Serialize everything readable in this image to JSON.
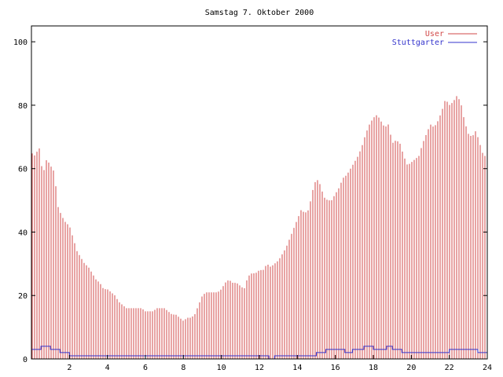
{
  "chart_data": {
    "type": "bar",
    "title": "Samstag 7. Oktober 2000",
    "xlabel": "",
    "ylabel": "",
    "xlim": [
      0,
      24
    ],
    "ylim": [
      0,
      105
    ],
    "x_ticks": [
      2,
      4,
      6,
      8,
      10,
      12,
      14,
      16,
      18,
      20,
      22,
      24
    ],
    "y_ticks": [
      0,
      20,
      40,
      60,
      80,
      100
    ],
    "grid": false,
    "legend_position": "top-right",
    "series": [
      {
        "name": "User",
        "style": "impulses",
        "color": "#d24a4a",
        "x": [
          0.0,
          0.2,
          0.4,
          0.6,
          0.8,
          1.0,
          1.2,
          1.4,
          1.6,
          1.8,
          2.0,
          2.2,
          2.4,
          2.6,
          2.8,
          3.0,
          3.2,
          3.4,
          3.6,
          3.8,
          4.0,
          4.2,
          4.4,
          4.6,
          4.8,
          5.0,
          5.2,
          5.4,
          5.6,
          5.8,
          6.0,
          6.2,
          6.4,
          6.6,
          6.8,
          7.0,
          7.2,
          7.4,
          7.6,
          7.8,
          8.0,
          8.2,
          8.4,
          8.6,
          8.8,
          9.0,
          9.2,
          9.4,
          9.6,
          9.8,
          10.0,
          10.2,
          10.4,
          10.6,
          10.8,
          11.0,
          11.2,
          11.4,
          11.6,
          11.8,
          12.0,
          12.2,
          12.4,
          12.6,
          12.8,
          13.0,
          13.2,
          13.4,
          13.6,
          13.8,
          14.0,
          14.2,
          14.4,
          14.6,
          14.8,
          15.0,
          15.2,
          15.4,
          15.6,
          15.8,
          16.0,
          16.2,
          16.4,
          16.6,
          16.8,
          17.0,
          17.2,
          17.4,
          17.6,
          17.8,
          18.0,
          18.2,
          18.4,
          18.6,
          18.8,
          19.0,
          19.2,
          19.4,
          19.6,
          19.8,
          20.0,
          20.2,
          20.4,
          20.6,
          20.8,
          21.0,
          21.2,
          21.4,
          21.6,
          21.8,
          22.0,
          22.2,
          22.4,
          22.6,
          22.8,
          23.0,
          23.2,
          23.4,
          23.6,
          23.8
        ],
        "values": [
          65,
          64,
          67,
          58,
          63,
          61,
          59,
          48,
          45,
          43,
          42,
          38,
          34,
          32,
          30,
          29,
          27,
          25,
          24,
          22,
          22,
          21,
          20,
          18,
          17,
          16,
          16,
          16,
          16,
          16,
          15,
          15,
          15,
          16,
          16,
          16,
          15,
          14,
          14,
          13,
          12,
          13,
          13,
          14,
          17,
          20,
          21,
          21,
          21,
          21,
          22,
          24,
          25,
          24,
          24,
          23,
          22,
          26,
          27,
          27,
          28,
          28,
          30,
          29,
          30,
          31,
          33,
          35,
          38,
          41,
          44,
          47,
          46,
          47,
          53,
          57,
          55,
          51,
          50,
          50,
          52,
          54,
          57,
          58,
          60,
          62,
          64,
          67,
          71,
          74,
          76,
          77,
          75,
          73,
          74,
          68,
          69,
          68,
          64,
          61,
          62,
          63,
          64,
          68,
          71,
          74,
          73,
          75,
          78,
          82,
          80,
          81,
          83,
          81,
          75,
          71,
          70,
          72,
          68,
          64
        ]
      },
      {
        "name": "Stuttgarter",
        "style": "steps",
        "color": "#3333cc",
        "x": [
          0.0,
          0.5,
          1.0,
          1.5,
          2.0,
          12.0,
          12.5,
          12.8,
          15.0,
          15.5,
          16.5,
          16.9,
          17.5,
          18.0,
          18.5,
          18.7,
          19.0,
          19.5,
          20.0,
          21.0,
          21.5,
          22.0,
          22.5,
          23.0,
          23.5,
          24.0
        ],
        "values": [
          3,
          4,
          3,
          2,
          1,
          1,
          0,
          1,
          2,
          3,
          2,
          3,
          4,
          3,
          3,
          4,
          3,
          2,
          2,
          2,
          2,
          3,
          3,
          3,
          2,
          1
        ]
      }
    ]
  }
}
